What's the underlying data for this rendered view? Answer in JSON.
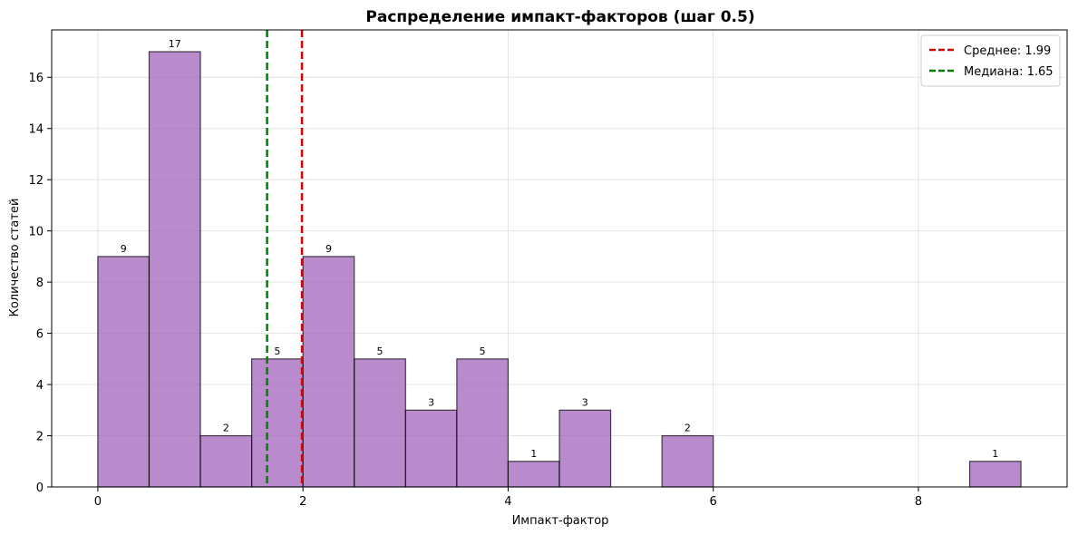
{
  "chart_data": {
    "type": "bar",
    "title": "Распределение импакт-факторов (шаг 0.5)",
    "xlabel": "Импакт-фактор",
    "ylabel": "Количество статей",
    "xlim": [
      -0.45,
      9.45
    ],
    "ylim": [
      0,
      17.85
    ],
    "xticks": [
      0,
      2,
      4,
      6,
      8
    ],
    "yticks": [
      0,
      2,
      4,
      6,
      8,
      10,
      12,
      14,
      16
    ],
    "grid": true,
    "bin_width": 0.5,
    "bins": [
      {
        "start": 0.0,
        "end": 0.5,
        "count": 9
      },
      {
        "start": 0.5,
        "end": 1.0,
        "count": 17
      },
      {
        "start": 1.0,
        "end": 1.5,
        "count": 2
      },
      {
        "start": 1.5,
        "end": 2.0,
        "count": 5
      },
      {
        "start": 2.0,
        "end": 2.5,
        "count": 9
      },
      {
        "start": 2.5,
        "end": 3.0,
        "count": 5
      },
      {
        "start": 3.0,
        "end": 3.5,
        "count": 3
      },
      {
        "start": 3.5,
        "end": 4.0,
        "count": 5
      },
      {
        "start": 4.0,
        "end": 4.5,
        "count": 1
      },
      {
        "start": 4.5,
        "end": 5.0,
        "count": 3
      },
      {
        "start": 5.5,
        "end": 6.0,
        "count": 2
      },
      {
        "start": 8.5,
        "end": 9.0,
        "count": 1
      }
    ],
    "bar_color": "#9b59b6",
    "bar_edge_color": "#000000",
    "vlines": [
      {
        "label": "Среднее: 1.99",
        "x": 1.99,
        "color": "#dd0000",
        "style": "dashed"
      },
      {
        "label": "Медиана: 1.65",
        "x": 1.65,
        "color": "#008000",
        "style": "dashed"
      }
    ],
    "legend_position": "top-right"
  }
}
